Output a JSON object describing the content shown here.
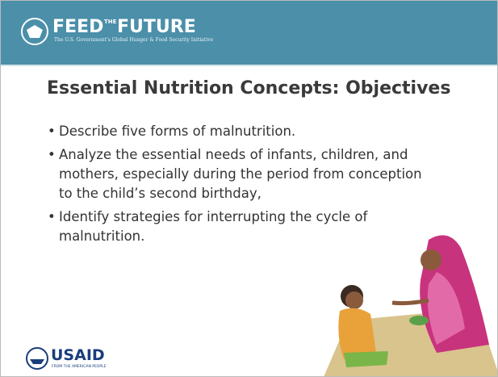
{
  "header": {
    "logo_parts": [
      "FEED",
      "THE",
      "FUTURE"
    ],
    "tagline": "The U.S. Government's Global Hunger & Food Security Initiative"
  },
  "title": "Essential Nutrition Concepts: Objectives",
  "bullets": [
    "Describe five forms of malnutrition.",
    "Analyze the essential needs of infants, children, and mothers, especially during the period from conception to the child’s second birthday,",
    "Identify strategies for interrupting the cycle of malnutrition."
  ],
  "footer": {
    "logo": "USAID",
    "tagline": "FROM THE AMERICAN PEOPLE"
  }
}
